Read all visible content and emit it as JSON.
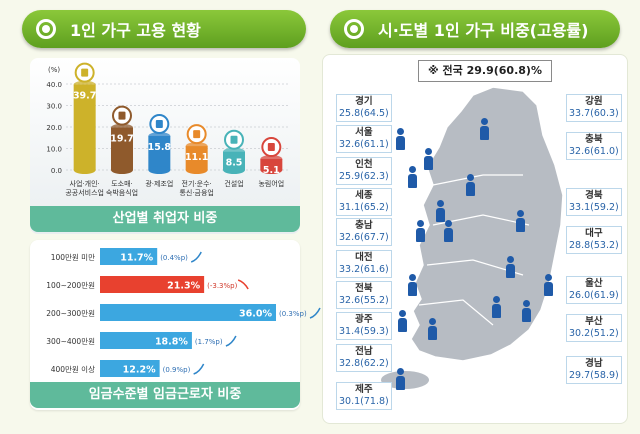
{
  "titles": {
    "left": "1인 가구 고용 현황",
    "right": "시·도별 1인 가구 비중(고용률)"
  },
  "chart_data": [
    {
      "type": "bar",
      "title": "",
      "caption": "산업별 취업자 비중",
      "ylabel": "(%)",
      "ylim": [
        0,
        40
      ],
      "yticks": [
        "0.0",
        "10.0",
        "20.0",
        "30.0",
        "40.0"
      ],
      "categories": [
        "사업·개인·\n공공서비스업",
        "도소매·\n숙박음식업",
        "광·제조업",
        "전기·운수·\n통신·금융업",
        "건설업",
        "농림어업"
      ],
      "values": [
        39.7,
        19.7,
        15.8,
        11.1,
        8.5,
        5.1
      ],
      "value_labels": [
        "39.7",
        "19.7",
        "15.8",
        "11.1",
        "8.5",
        "5.1"
      ],
      "colors": [
        "#cdb22a",
        "#8f5a2c",
        "#2f86c9",
        "#e88a2a",
        "#48b3b8",
        "#d8463c"
      ],
      "grid": true
    },
    {
      "type": "bar",
      "orientation": "horizontal",
      "caption": "임금수준별 임금근로자 비중",
      "categories": [
        "100만원 미만",
        "100~200만원",
        "200~300만원",
        "300~400만원",
        "400만원 이상"
      ],
      "values": [
        11.7,
        21.3,
        36.0,
        18.8,
        12.2
      ],
      "value_labels": [
        "11.7%",
        "21.3%",
        "36.0%",
        "18.8%",
        "12.2%"
      ],
      "changes": [
        "(0.4%p)",
        "(-3.3%p)",
        "(0.3%p)",
        "(1.7%p)",
        "(0.9%p)"
      ],
      "change_dir": [
        "up",
        "down",
        "up",
        "up",
        "up"
      ],
      "highlight_color": "#e8412f",
      "base_color": "#3ca7e0",
      "xlim": [
        0,
        36
      ]
    },
    {
      "type": "map",
      "national": "※ 전국 29.9(60.8)%",
      "regions": [
        {
          "name": "경기",
          "value": "25.8(64.5)"
        },
        {
          "name": "서울",
          "value": "32.6(61.1)"
        },
        {
          "name": "인천",
          "value": "25.9(62.3)"
        },
        {
          "name": "세종",
          "value": "31.1(65.2)"
        },
        {
          "name": "충남",
          "value": "32.6(67.7)"
        },
        {
          "name": "대전",
          "value": "33.2(61.6)"
        },
        {
          "name": "전북",
          "value": "32.6(55.2)"
        },
        {
          "name": "광주",
          "value": "31.4(59.3)"
        },
        {
          "name": "전남",
          "value": "32.8(62.2)"
        },
        {
          "name": "제주",
          "value": "30.1(71.8)"
        },
        {
          "name": "강원",
          "value": "33.7(60.3)"
        },
        {
          "name": "충북",
          "value": "32.6(61.0)"
        },
        {
          "name": "경북",
          "value": "33.1(59.2)"
        },
        {
          "name": "대구",
          "value": "28.8(53.2)"
        },
        {
          "name": "울산",
          "value": "26.0(61.9)"
        },
        {
          "name": "부산",
          "value": "30.2(51.2)"
        },
        {
          "name": "경남",
          "value": "29.7(58.9)"
        }
      ]
    }
  ]
}
